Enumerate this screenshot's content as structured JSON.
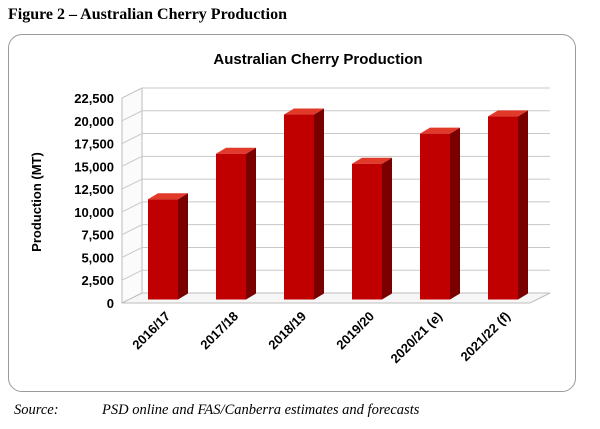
{
  "figure": {
    "caption": "Figure 2 – Australian Cherry Production",
    "source_label": "Source:",
    "source_text": "PSD online and FAS/Canberra estimates and forecasts"
  },
  "chart_data": {
    "type": "bar",
    "title": "Australian Cherry Production",
    "xlabel": "",
    "ylabel": "Production (MT)",
    "categories": [
      "2016/17",
      "2017/18",
      "2018/19",
      "2019/20",
      "2020/21 (e)",
      "2021/22 (f)"
    ],
    "values": [
      11000,
      16000,
      20300,
      14900,
      18200,
      20100
    ],
    "ylim": [
      0,
      22500
    ],
    "yticks": [
      0,
      2500,
      5000,
      7500,
      10000,
      12500,
      15000,
      17500,
      20000,
      22500
    ],
    "ytick_labels": [
      "0",
      "2,500",
      "5,000",
      "7,500",
      "10,000",
      "12,500",
      "15,000",
      "17,500",
      "20,000",
      "22,500"
    ],
    "grid": true,
    "legend": "none",
    "style": "3d-column",
    "colors": {
      "bar_front": "#c00000",
      "bar_side": "#7a0000",
      "bar_top": "#e23a2a",
      "grid": "#c8c8c8"
    }
  }
}
